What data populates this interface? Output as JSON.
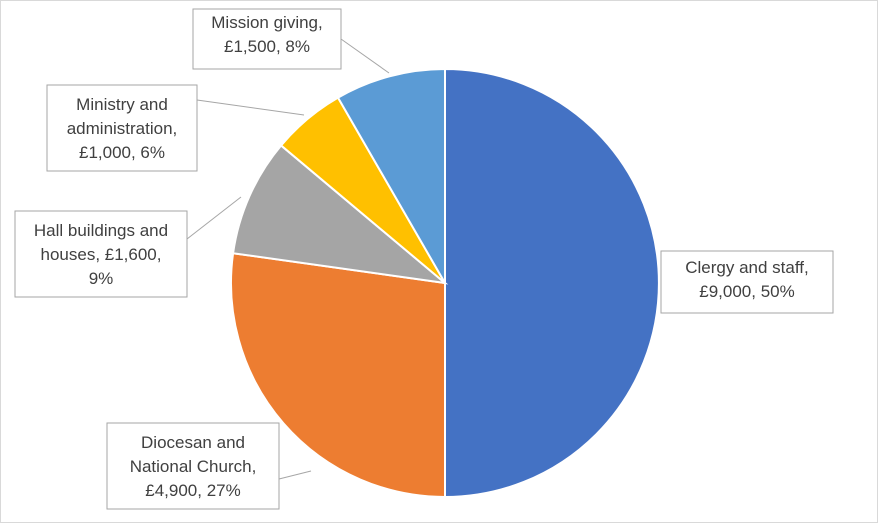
{
  "chart_data": {
    "type": "pie",
    "start_angle_deg": 0,
    "direction": "clockwise",
    "slices": [
      {
        "label_lines": [
          "Clergy and staff,",
          "£9,000, 50%"
        ],
        "category": "Clergy and staff",
        "value": 9000,
        "percent": "50%",
        "color": "#4472c4"
      },
      {
        "label_lines": [
          "Diocesan and",
          "National Church,",
          "£4,900, 27%"
        ],
        "category": "Diocesan and National Church",
        "value": 4900,
        "percent": "27%",
        "color": "#ed7d31"
      },
      {
        "label_lines": [
          "Hall buildings and",
          "houses, £1,600,",
          "9%"
        ],
        "category": "Hall buildings and houses",
        "value": 1600,
        "percent": "9%",
        "color": "#a5a5a5"
      },
      {
        "label_lines": [
          "Ministry and",
          "administration,",
          "£1,000, 6%"
        ],
        "category": "Ministry and administration",
        "value": 1000,
        "percent": "6%",
        "color": "#ffc000"
      },
      {
        "label_lines": [
          "Mission giving,",
          "£1,500, 8%"
        ],
        "category": "Mission giving",
        "value": 1500,
        "percent": "8%",
        "color": "#5b9bd5"
      }
    ]
  }
}
